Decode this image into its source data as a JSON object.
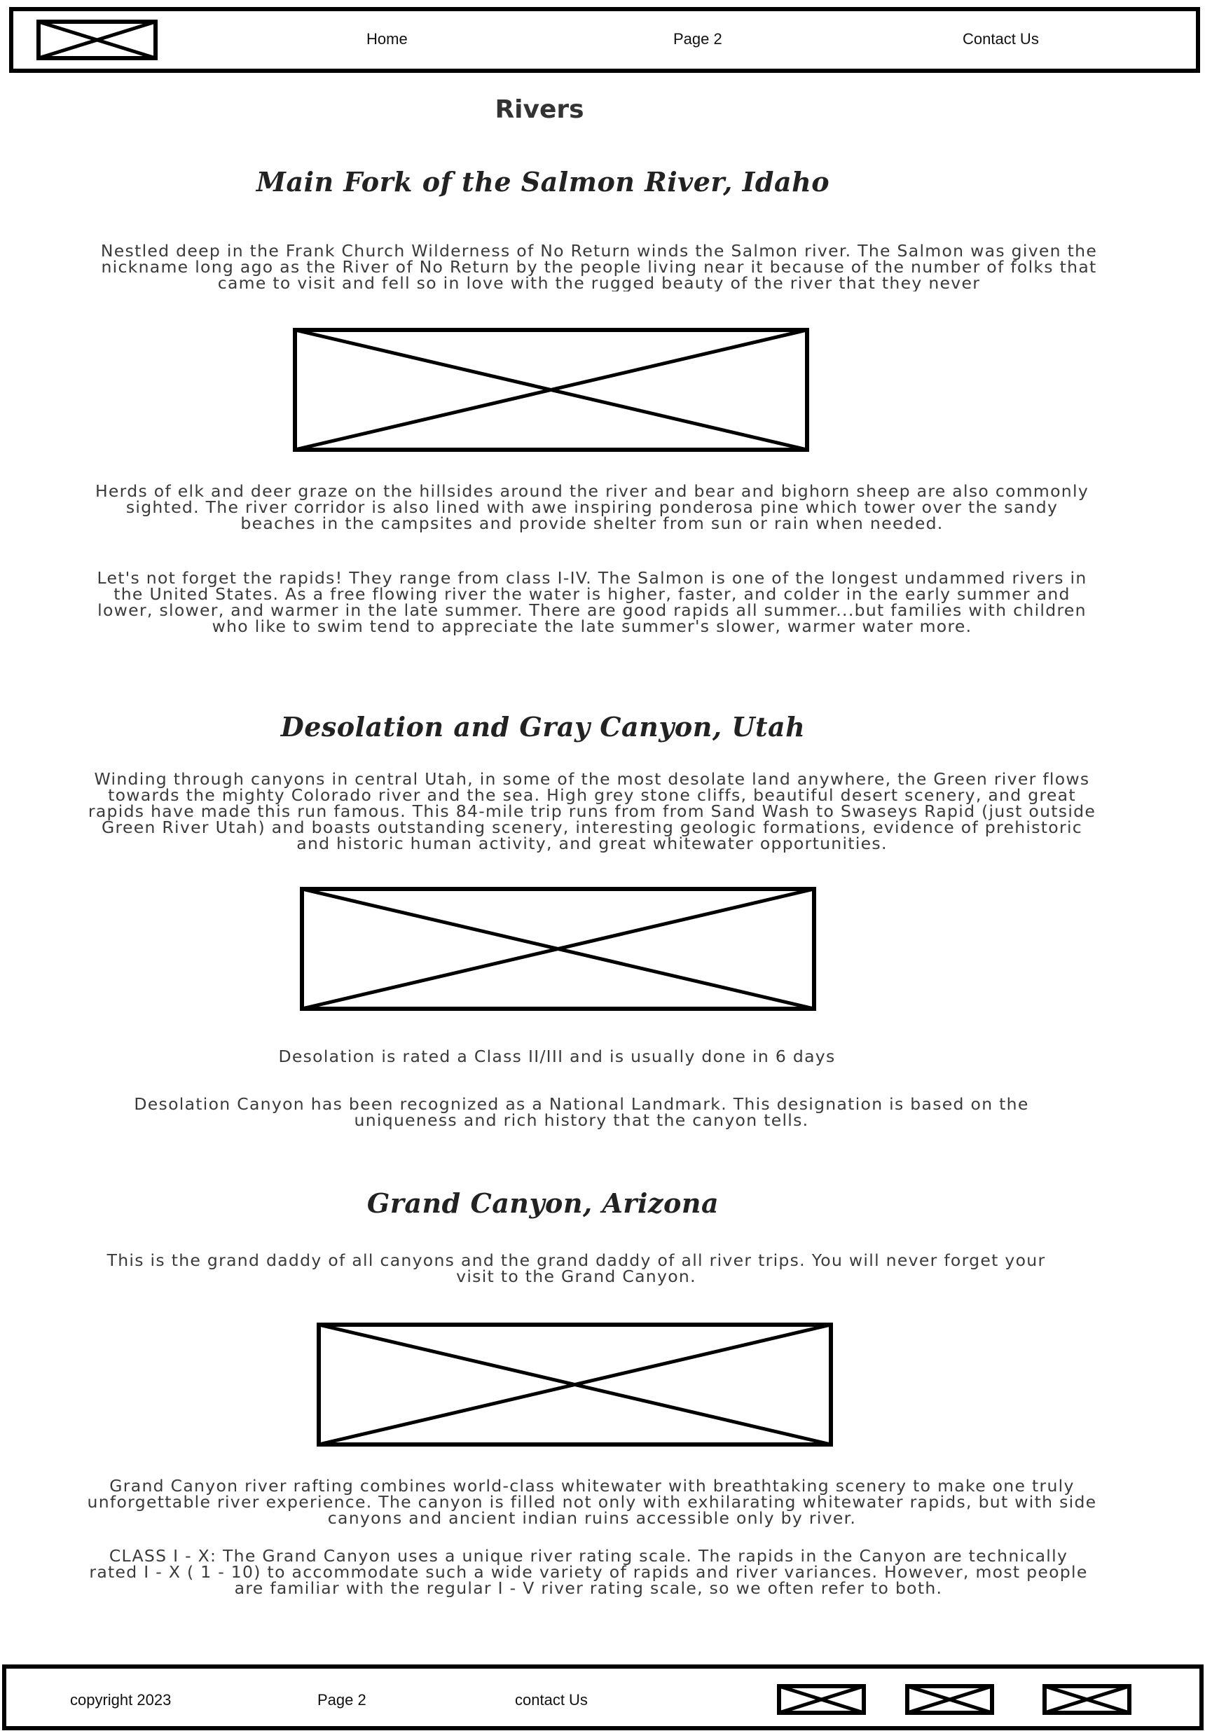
{
  "header": {
    "logo_icon": "image-placeholder-icon",
    "nav": {
      "home": "Home",
      "page2": "Page 2",
      "contact": "Contact Us"
    }
  },
  "main": {
    "title": "Rivers",
    "sections": [
      {
        "heading": "Main Fork of the Salmon River, Idaho",
        "intro": "Nestled deep in the Frank Church Wilderness of No Return winds the Salmon river. The Salmon was given the nickname long ago as the River of No Return by the people living near it because of the number of folks that came to visit and fell so in love with the rugged beauty of the river that they never",
        "image_icon": "image-placeholder-icon",
        "paragraphs": [
          "Herds of elk and deer graze on the hillsides around the river and bear and bighorn sheep are also commonly sighted. The river corridor is also lined with awe inspiring ponderosa pine which tower over the sandy beaches in the campsites and provide shelter from sun or rain when needed.",
          "Let's not forget the rapids! They range from class I-IV. The Salmon is one of the longest undammed rivers in the United States. As a free flowing river the water is higher, faster, and colder in the early summer and lower, slower, and warmer in the late summer. There are good rapids all summer...but families with children who like to swim tend to appreciate the late summer's slower, warmer water more."
        ]
      },
      {
        "heading": "Desolation and Gray Canyon, Utah",
        "intro": "Winding through canyons in central Utah, in some of the most desolate land anywhere, the Green river flows towards the mighty Colorado river and the sea. High grey stone cliffs, beautiful desert scenery, and great rapids have made this run famous. This 84-mile trip runs from from Sand Wash to Swaseys Rapid (just outside Green River Utah) and boasts outstanding scenery, interesting geologic formations, evidence of prehistoric and historic human activity, and great whitewater opportunities.",
        "image_icon": "image-placeholder-icon",
        "paragraphs": [
          "Desolation is rated a Class II/III and is usually done in 6 days",
          "Desolation Canyon has been recognized as a National Landmark. This designation is based on the uniqueness and rich history that the canyon tells."
        ]
      },
      {
        "heading": "Grand Canyon, Arizona",
        "intro": "This is the grand daddy of all canyons and the grand daddy of all river trips. You will never forget your visit to the Grand Canyon.",
        "image_icon": "image-placeholder-icon",
        "paragraphs": [
          "Grand Canyon river rafting combines world-class whitewater with breathtaking scenery to make one truly unforgettable river experience. The canyon is filled not only with exhilarating whitewater rapids, but with side canyons and ancient indian ruins accessible only by river.",
          "CLASS I - X: The Grand Canyon uses a unique river rating scale. The rapids in the Canyon are technically rated I - X ( 1 - 10) to accommodate such a wide variety of rapids and river variances. However, most people are familiar with the regular I - V river rating scale, so we often refer to both."
        ]
      }
    ]
  },
  "footer": {
    "copyright": "copyright 2023",
    "page2": "Page 2",
    "contact": "contact Us",
    "social_icons": [
      "image-placeholder-icon",
      "image-placeholder-icon",
      "image-placeholder-icon"
    ]
  }
}
